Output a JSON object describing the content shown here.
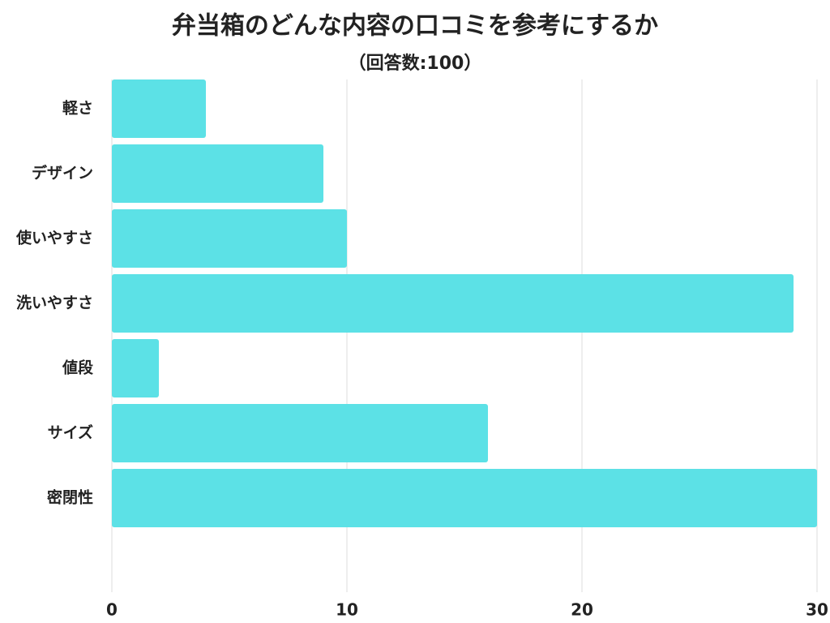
{
  "chart_data": {
    "type": "barh",
    "title": "弁当箱のどんな内容の口コミを参考にするか",
    "subtitle": "（回答数:100）",
    "categories": [
      "軽さ",
      "デザイン",
      "使いやすさ",
      "洗いやすさ",
      "値段",
      "サイズ",
      "密閉性"
    ],
    "values": [
      4,
      9,
      10,
      29,
      2,
      16,
      30
    ],
    "color": "#5ce1e6",
    "xlim": [
      0,
      30
    ],
    "xticks": [
      0,
      10,
      20,
      30
    ],
    "grid": true
  }
}
